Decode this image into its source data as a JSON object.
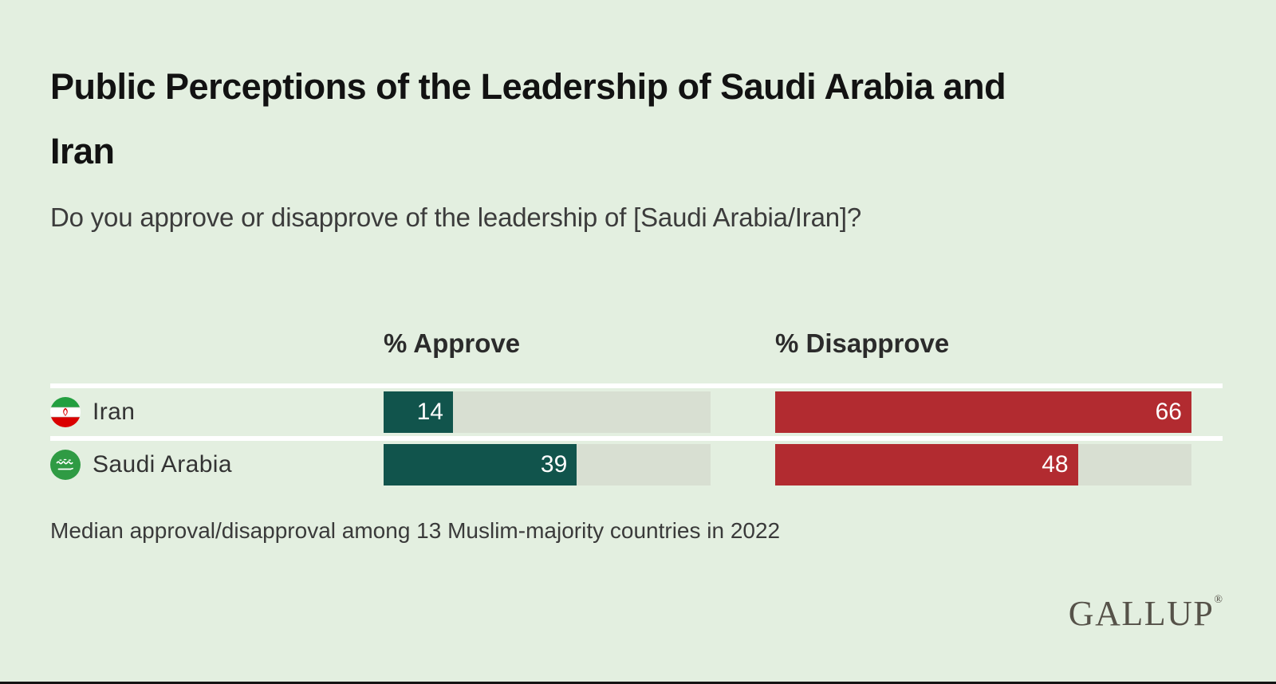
{
  "title": {
    "full": "Public Perceptions of the Leadership of Saudi Arabia and Iran",
    "lines": [
      "Public Perceptions of the Leadership of Saudi Arabia and",
      "Iran"
    ]
  },
  "subtitle": "Do you approve or disapprove of the leadership of [Saudi Arabia/Iran]?",
  "footnote": "Median approval/disapproval among 13 Muslim-majority countries in 2022",
  "brand": {
    "logo_text": "GALLUP",
    "registered_mark": "®"
  },
  "icons": {
    "row_flags": [
      "iran-flag-icon",
      "saudi-arabia-flag-icon"
    ]
  },
  "chart_data": {
    "type": "bar",
    "orientation": "horizontal",
    "categories": [
      "Iran",
      "Saudi Arabia"
    ],
    "series": [
      {
        "name": "% Approve",
        "values": [
          14,
          39
        ],
        "color": "#11544c"
      },
      {
        "name": "% Disapprove",
        "values": [
          66,
          48
        ],
        "color": "#b22b30"
      }
    ],
    "value_axis_max": 66,
    "grid": "off",
    "legend_position": "column-headers-top",
    "track_color": "#d8dfd2",
    "background_color": "#e3efe0",
    "separator_color": "#ffffff",
    "value_label_color": "#ffffff"
  }
}
